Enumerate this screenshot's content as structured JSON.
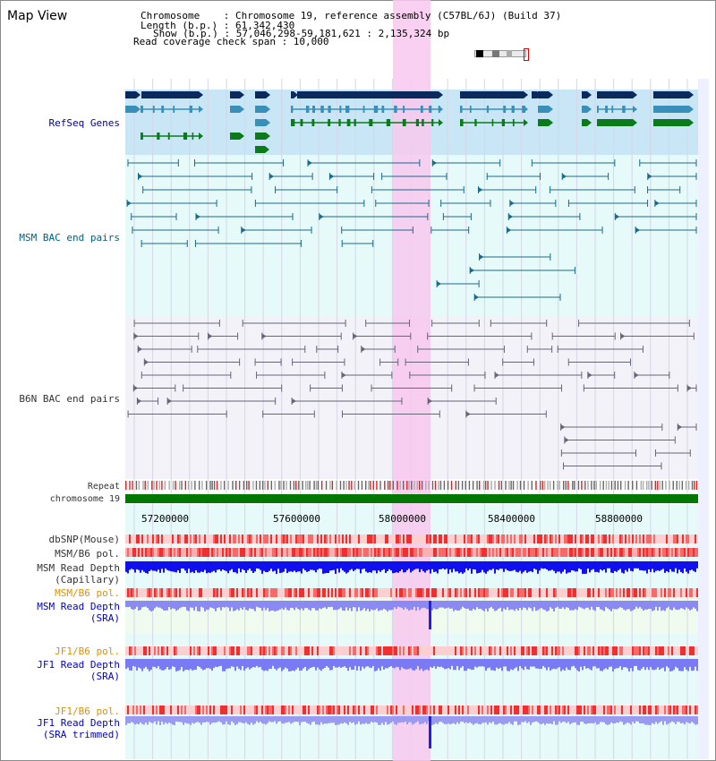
{
  "view_title": "Map View",
  "header": {
    "line1": "Chromosome    : Chromosome 19, reference assembly (C57BL/6J) (Build 37)",
    "line2": "Length (b.p.) : 61,342,430",
    "line3": "Show (b.p.) : 57,046,298-59,181,621 : 2,135,324 bp",
    "line4": "Read coverage check span : 10,000"
  },
  "tracks": {
    "refseq": "RefSeq Genes",
    "msm_bac": "MSM BAC end pairs",
    "b6n_bac": "B6N BAC end pairs",
    "repeat": "Repeat",
    "chromosome": "chromosome 19",
    "dbsnp": "dbSNP(Mouse)",
    "msm_b6_pol_1": "MSM/B6 pol.",
    "msm_read_cap_1": "MSM Read Depth",
    "msm_read_cap_2": "(Capillary)",
    "msm_b6_pol_2": "MSM/B6 pol.",
    "msm_read_sra_1": "MSM Read Depth",
    "msm_read_sra_2": "(SRA)",
    "jf1_b6_pol_1": "JF1/B6 pol.",
    "jf1_read_1": "JF1 Read Depth",
    "jf1_read_2": "(SRA)",
    "jf1_b6_pol_2": "JF1/B6 pol.",
    "jf1_trim_1": "JF1 Read Depth",
    "jf1_trim_2": "(SRA trimmed)"
  },
  "axis": {
    "ticks": [
      "57200000",
      "57600000",
      "58000000",
      "58400000",
      "58800000"
    ]
  },
  "colors": {
    "refseq_bg": "#c8e6f5",
    "msm_bg": "#e6fafa",
    "b6n_bg": "#f2f2f8",
    "highlight": "#f8c8ef",
    "gene_navy": "#0a2a5e",
    "gene_teal": "#3a8fb8",
    "gene_green": "#0a7a1a",
    "chromosome": "#007700",
    "read_depth": "#1010ee"
  }
}
